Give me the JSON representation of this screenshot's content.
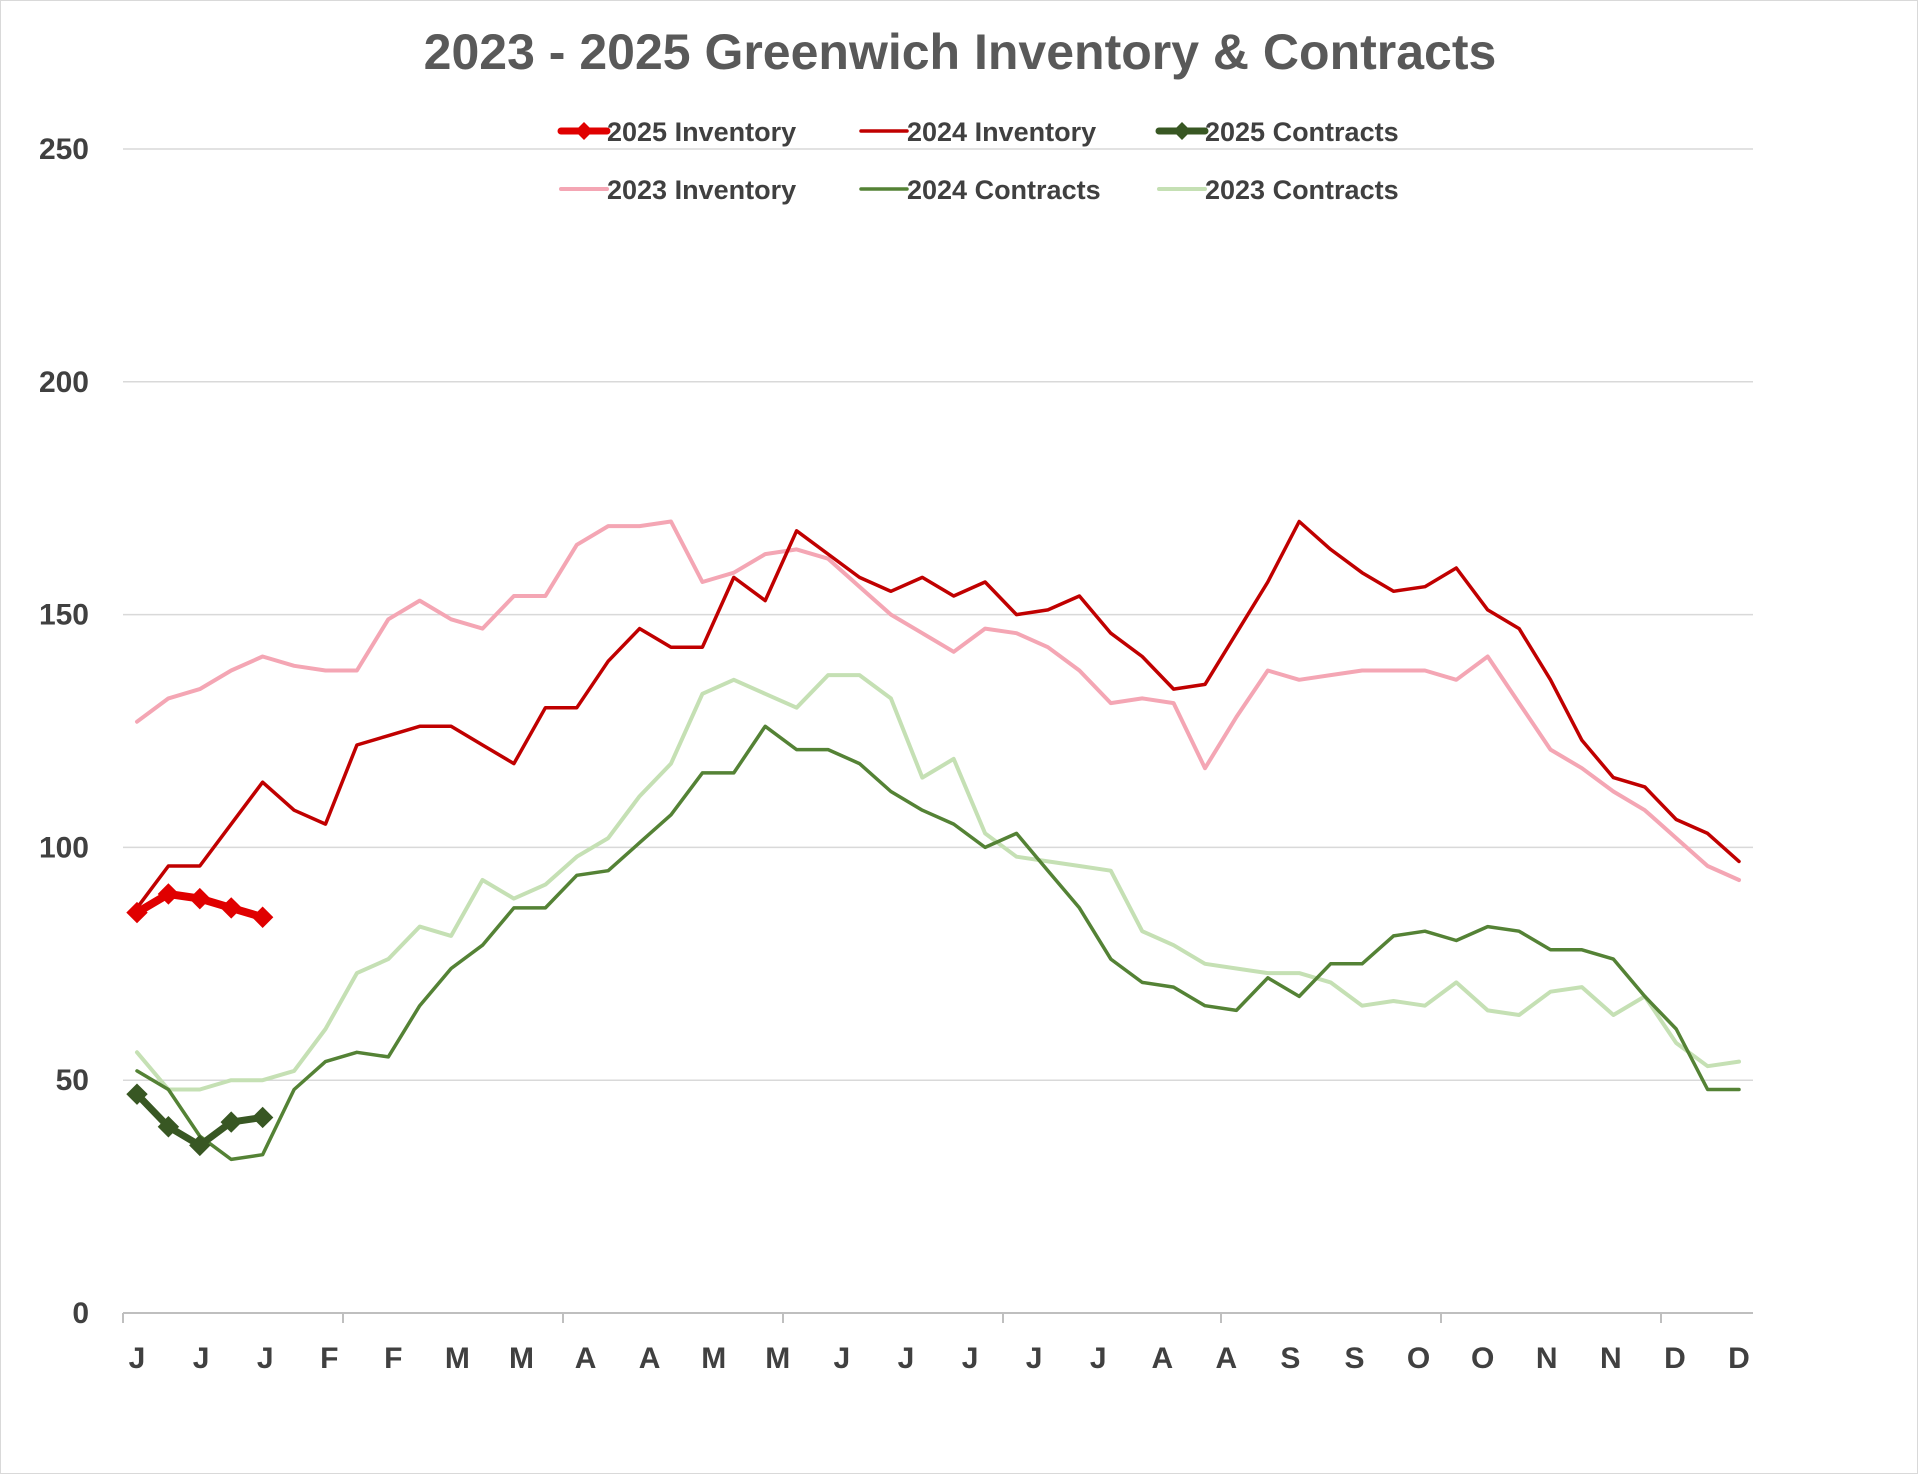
{
  "chart_data": {
    "type": "line",
    "title": "2023 - 2025 Greenwich Inventory & Contracts",
    "xlabel": "",
    "ylabel": "",
    "ylim": [
      0,
      250
    ],
    "yticks": [
      0,
      50,
      100,
      150,
      200,
      250
    ],
    "grid": true,
    "legend_position": "top",
    "x_tick_labels": [
      "J",
      "J",
      "J",
      "F",
      "F",
      "M",
      "M",
      "A",
      "A",
      "M",
      "M",
      "J",
      "J",
      "J",
      "J",
      "J",
      "A",
      "A",
      "S",
      "S",
      "O",
      "O",
      "N",
      "N",
      "D",
      "D"
    ],
    "series": [
      {
        "name": "2025 Inventory",
        "color": "#e00000",
        "width": 8,
        "marker": "diamond",
        "values": [
          86,
          90,
          89,
          87,
          85
        ]
      },
      {
        "name": "2024 Inventory",
        "color": "#c00000",
        "width": 3.5,
        "marker": "none",
        "values": [
          87,
          96,
          96,
          105,
          114,
          108,
          105,
          122,
          124,
          126,
          126,
          122,
          118,
          130,
          130,
          140,
          147,
          143,
          143,
          158,
          153,
          168,
          163,
          158,
          155,
          158,
          154,
          157,
          150,
          151,
          154,
          146,
          141,
          134,
          135,
          146,
          157,
          170,
          164,
          159,
          155,
          156,
          160,
          151,
          147,
          136,
          123,
          115,
          113,
          106,
          103,
          97
        ]
      },
      {
        "name": "2025 Contracts",
        "color": "#385723",
        "width": 7,
        "marker": "diamond",
        "values": [
          47,
          40,
          36,
          41,
          42
        ]
      },
      {
        "name": "2023 Inventory",
        "color": "#f4a6b4",
        "width": 4,
        "marker": "none",
        "values": [
          127,
          132,
          134,
          138,
          141,
          139,
          138,
          138,
          149,
          153,
          149,
          147,
          154,
          154,
          165,
          169,
          169,
          170,
          157,
          159,
          163,
          164,
          162,
          156,
          150,
          146,
          142,
          147,
          146,
          143,
          138,
          131,
          132,
          131,
          117,
          128,
          138,
          136,
          137,
          138,
          138,
          138,
          136,
          141,
          131,
          121,
          117,
          112,
          108,
          102,
          96,
          93
        ]
      },
      {
        "name": "2024 Contracts",
        "color": "#548235",
        "width": 3.5,
        "marker": "none",
        "values": [
          52,
          48,
          38,
          33,
          34,
          48,
          54,
          56,
          55,
          66,
          74,
          79,
          87,
          87,
          94,
          95,
          101,
          107,
          116,
          116,
          126,
          121,
          121,
          118,
          112,
          108,
          105,
          100,
          103,
          95,
          87,
          76,
          71,
          70,
          66,
          65,
          72,
          68,
          75,
          75,
          81,
          82,
          80,
          83,
          82,
          78,
          78,
          76,
          68,
          61,
          48,
          48
        ]
      },
      {
        "name": "2023 Contracts",
        "color": "#c5e0b4",
        "width": 4,
        "marker": "none",
        "values": [
          56,
          48,
          48,
          50,
          50,
          52,
          61,
          73,
          76,
          83,
          81,
          93,
          89,
          92,
          98,
          102,
          111,
          118,
          133,
          136,
          133,
          130,
          137,
          137,
          132,
          115,
          119,
          103,
          98,
          97,
          96,
          95,
          82,
          79,
          75,
          74,
          73,
          73,
          71,
          66,
          67,
          66,
          71,
          65,
          64,
          69,
          70,
          64,
          68,
          58,
          53,
          54
        ]
      }
    ]
  }
}
